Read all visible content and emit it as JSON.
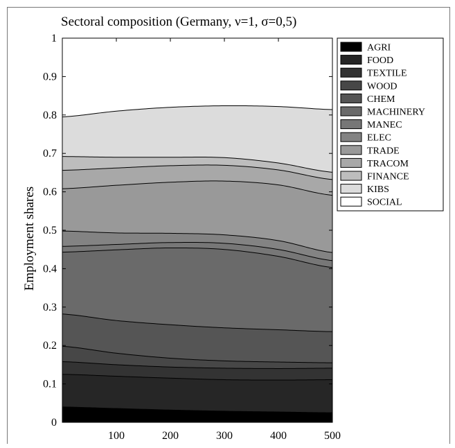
{
  "chart_data": {
    "type": "area",
    "title": "Sectoral composition (Germany, ν=1, σ=0,5)",
    "xlabel": "",
    "ylabel": "Employment shares",
    "xlim": [
      0,
      500
    ],
    "ylim": [
      0,
      1
    ],
    "x_ticks": [
      "100",
      "200",
      "300",
      "400",
      "500"
    ],
    "x_tick_values": [
      100,
      200,
      300,
      400,
      500
    ],
    "y_ticks": [
      "0",
      "0.1",
      "0.2",
      "0.3",
      "0.4",
      "0.5",
      "0.6",
      "0.7",
      "0.8",
      "0.9",
      "1"
    ],
    "y_tick_values": [
      0,
      0.1,
      0.2,
      0.3,
      0.4,
      0.5,
      0.6,
      0.7,
      0.8,
      0.9,
      1
    ],
    "legend_position": "right, outside plot",
    "stacking": "cumulative",
    "x": [
      0,
      100,
      200,
      300,
      400,
      500
    ],
    "series": [
      {
        "name": "AGRI",
        "color": "#000000",
        "upper": [
          0.04,
          0.036,
          0.032,
          0.029,
          0.027,
          0.025
        ]
      },
      {
        "name": "FOOD",
        "color": "#262626",
        "upper": [
          0.125,
          0.12,
          0.115,
          0.111,
          0.11,
          0.111
        ]
      },
      {
        "name": "TEXTILE",
        "color": "#333333",
        "upper": [
          0.158,
          0.15,
          0.144,
          0.141,
          0.14,
          0.141
        ]
      },
      {
        "name": "WOOD",
        "color": "#474747",
        "upper": [
          0.198,
          0.18,
          0.167,
          0.16,
          0.157,
          0.155
        ]
      },
      {
        "name": "CHEM",
        "color": "#555555",
        "upper": [
          0.282,
          0.265,
          0.254,
          0.246,
          0.241,
          0.236
        ]
      },
      {
        "name": "MACHINERY",
        "color": "#6a6a6a",
        "upper": [
          0.443,
          0.449,
          0.454,
          0.45,
          0.432,
          0.403
        ]
      },
      {
        "name": "MANEC",
        "color": "#777777",
        "upper": [
          0.458,
          0.463,
          0.468,
          0.466,
          0.45,
          0.421
        ]
      },
      {
        "name": "ELEC",
        "color": "#838383",
        "upper": [
          0.498,
          0.493,
          0.492,
          0.488,
          0.473,
          0.442
        ]
      },
      {
        "name": "TRADE",
        "color": "#999999",
        "upper": [
          0.608,
          0.617,
          0.625,
          0.628,
          0.618,
          0.591
        ]
      },
      {
        "name": "TRACOM",
        "color": "#a8a8a8",
        "upper": [
          0.656,
          0.662,
          0.668,
          0.669,
          0.657,
          0.632
        ]
      },
      {
        "name": "FINANCE",
        "color": "#bdbdbd",
        "upper": [
          0.692,
          0.69,
          0.69,
          0.689,
          0.675,
          0.651
        ]
      },
      {
        "name": "KIBS",
        "color": "#dcdcdc",
        "upper": [
          0.795,
          0.81,
          0.82,
          0.824,
          0.822,
          0.814
        ]
      },
      {
        "name": "SOCIAL",
        "color": "#ffffff",
        "upper": [
          1.0,
          1.0,
          1.0,
          1.0,
          1.0,
          1.0
        ]
      }
    ]
  }
}
